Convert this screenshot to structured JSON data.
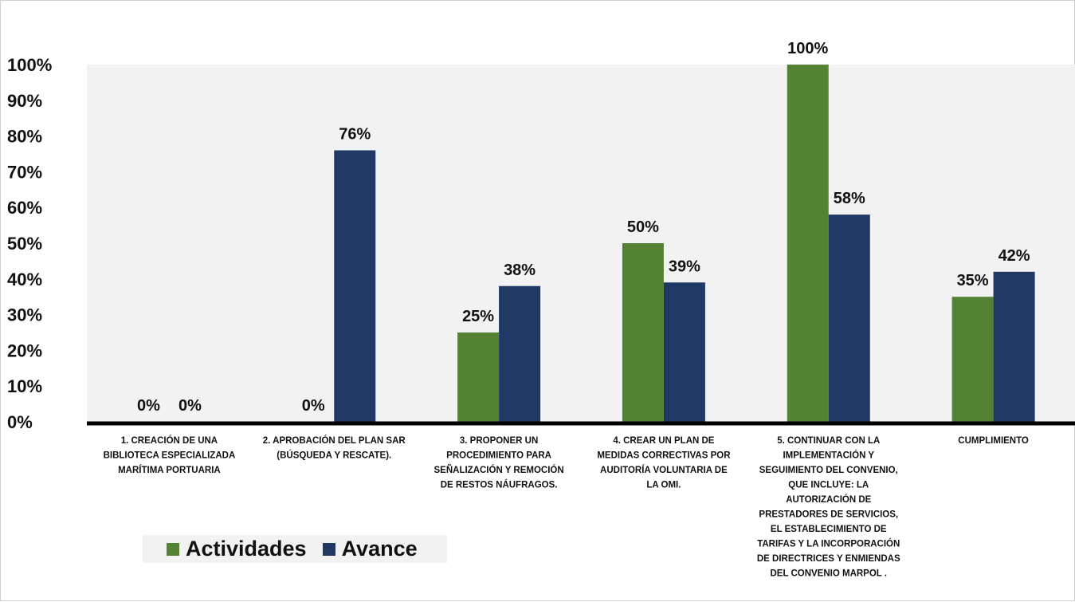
{
  "chart_data": {
    "type": "bar",
    "categories": [
      [
        "1. CREACIÓN DE UNA",
        "BIBLIOTECA ESPECIALIZADA",
        "MARÍTIMA PORTUARIA"
      ],
      [
        "2. APROBACIÓN DEL PLAN SAR",
        "(BÚSQUEDA Y RESCATE)."
      ],
      [
        "3. PROPONER UN",
        "PROCEDIMIENTO PARA",
        "SEÑALIZACIÓN Y REMOCIÓN",
        "DE RESTOS NÁUFRAGOS."
      ],
      [
        "4. CREAR  UN PLAN DE",
        "MEDIDAS CORRECTIVAS POR",
        "AUDITORÍA VOLUNTARIA DE",
        "LA OMI."
      ],
      [
        "5. CONTINUAR CON LA",
        "IMPLEMENTACIÓN Y",
        "SEGUIMIENTO DEL CONVENIO,",
        "QUE INCLUYE: LA",
        "AUTORIZACIÓN DE",
        "PRESTADORES DE SERVICIOS,",
        "EL ESTABLECIMIENTO DE",
        "TARIFAS Y LA INCORPORACIÓN",
        "DE DIRECTRICES Y ENMIENDAS",
        "DEL CONVENIO MARPOL ."
      ],
      [
        "CUMPLIMIENTO"
      ]
    ],
    "series": [
      {
        "name": "Actividades",
        "color": "#548235",
        "values": [
          0,
          0,
          25,
          50,
          100,
          35
        ],
        "labels": [
          "0%",
          "0%",
          "25%",
          "50%",
          "100%",
          "35%"
        ]
      },
      {
        "name": "Avance",
        "color": "#203864",
        "values": [
          0,
          76,
          38,
          39,
          58,
          42
        ],
        "labels": [
          "0%",
          "76%",
          "38%",
          "39%",
          "58%",
          "42%"
        ]
      }
    ],
    "yticks": [
      "0%",
      "10%",
      "20%",
      "30%",
      "40%",
      "50%",
      "60%",
      "70%",
      "80%",
      "90%",
      "100%"
    ],
    "ylim": [
      0,
      100
    ],
    "plot_background": "#f2f2f2",
    "legend_position": "bottom-left",
    "title": "",
    "xlabel": "",
    "ylabel": ""
  }
}
